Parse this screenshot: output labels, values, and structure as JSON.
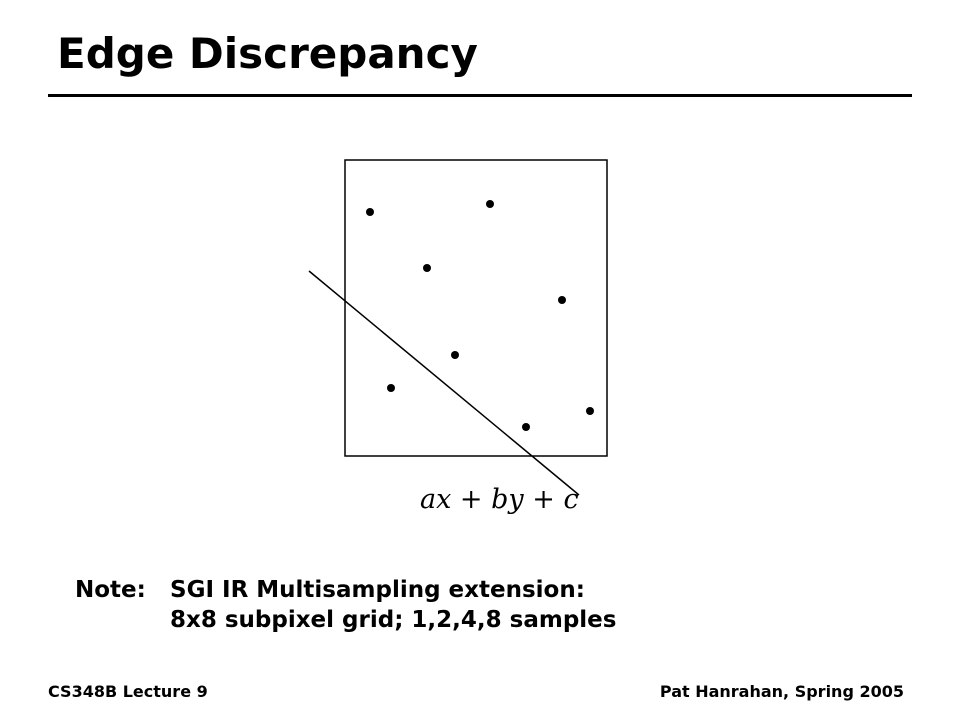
{
  "slide": {
    "title": "Edge Discrepancy"
  },
  "diagram": {
    "equation_label": "ax + by + c",
    "samples_count": 8,
    "edge_line": "ax + by + c"
  },
  "note": {
    "label": "Note:",
    "lines": [
      "SGI IR Multisampling extension:",
      "8x8 subpixel grid; 1,2,4,8 samples"
    ]
  },
  "footer": {
    "left": "CS348B Lecture 9",
    "right": "Pat Hanrahan, Spring 2005"
  }
}
